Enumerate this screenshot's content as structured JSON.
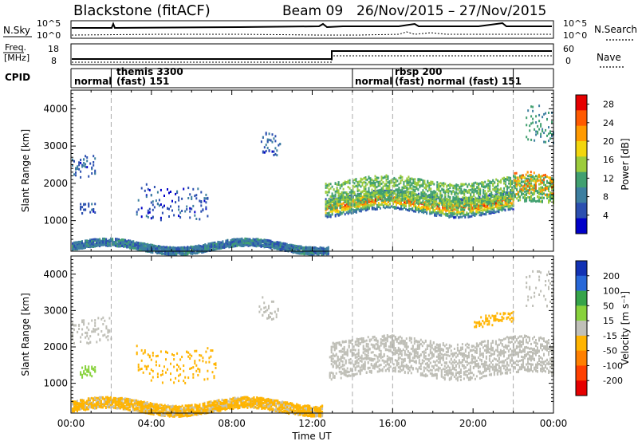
{
  "header": {
    "station": "Blackstone (fitACF)",
    "beam": "Beam 09",
    "date_range": "26/Nov/2015 – 27/Nov/2015"
  },
  "strip": {
    "nsky_label": "N.Sky",
    "nsearch_label": "N.Search",
    "freq_label_1": "Freq.",
    "freq_label_2": "[MHz]",
    "nave_label": "Nave",
    "cpid_label": "CPID",
    "nsky_ticks": [
      "10^5",
      "10^0"
    ],
    "nsearch_ticks": [
      "10^5",
      "10^0"
    ],
    "freq_ticks": [
      "18",
      "8"
    ],
    "nave_ticks": [
      "60",
      "0"
    ]
  },
  "modes": [
    {
      "name": "normal",
      "t": 0
    },
    {
      "name": "themis 3300",
      "t": 2
    },
    {
      "name": "(fast) 151",
      "t": 2
    },
    {
      "name": "normal",
      "t": 14
    },
    {
      "name": "rbsp 200",
      "t": 16
    },
    {
      "name": "(fast)",
      "t": 16
    },
    {
      "name": "normal (fast) 151",
      "t": 17.5
    }
  ],
  "mode_boundaries_hours": [
    2,
    14,
    16,
    22
  ],
  "colors": {
    "power_scale": [
      "#0000c8",
      "#2b4fb0",
      "#3d7fa0",
      "#41a070",
      "#9ccc3c",
      "#f2d60e",
      "#ff9a00",
      "#ff5a00",
      "#e60000"
    ],
    "velocity_scale": [
      "#1232b4",
      "#2868d8",
      "#36a44a",
      "#88d23c",
      "#c0c0b8",
      "#ffb400",
      "#ff8000",
      "#ff4000",
      "#e60000"
    ],
    "ground_scatter": "#bebeb6"
  },
  "chart_data": [
    {
      "type": "heatmap",
      "title": "",
      "xlabel": "Time UT",
      "ylabel": "Slant Range [km]",
      "x_ticks": [
        "00:00",
        "04:00",
        "08:00",
        "12:00",
        "16:00",
        "20:00",
        "00:00"
      ],
      "xlim_hours": [
        0,
        24
      ],
      "y_ticks": [
        1000,
        2000,
        3000,
        4000
      ],
      "ylim": [
        180,
        4500
      ],
      "colorbar": {
        "label": "Power [dB]",
        "ticks": [
          4,
          8,
          12,
          16,
          20,
          24,
          28
        ],
        "range": [
          0,
          30
        ]
      },
      "features": [
        {
          "t": [
            0,
            1.2
          ],
          "range": [
            2100,
            2700
          ],
          "level": 6
        },
        {
          "t": [
            0.4,
            1.2
          ],
          "range": [
            1100,
            1400
          ],
          "level": 5
        },
        {
          "t": [
            3.2,
            6.8
          ],
          "range": [
            1100,
            2000
          ],
          "level": 5
        },
        {
          "t": [
            9.4,
            10.4
          ],
          "range": [
            2700,
            3300
          ],
          "level": 6
        },
        {
          "t": [
            12.6,
            22
          ],
          "range": [
            1200,
            1700
          ],
          "level": 27
        },
        {
          "t": [
            12.6,
            24
          ],
          "range": [
            1400,
            2100
          ],
          "level": 13
        },
        {
          "t": [
            22,
            24
          ],
          "range": [
            1600,
            2200
          ],
          "level": 22
        },
        {
          "t": [
            0,
            12.8
          ],
          "range": [
            200,
            400
          ],
          "level": 8
        },
        {
          "t": [
            22.5,
            24
          ],
          "range": [
            3000,
            4000
          ],
          "level": 10
        }
      ]
    },
    {
      "type": "heatmap",
      "title": "",
      "xlabel": "Time UT",
      "ylabel": "Slant Range [km]",
      "x_ticks": [
        "00:00",
        "04:00",
        "08:00",
        "12:00",
        "16:00",
        "20:00",
        "00:00"
      ],
      "xlim_hours": [
        0,
        24
      ],
      "y_ticks": [
        1000,
        2000,
        3000,
        4000
      ],
      "ylim": [
        180,
        4500
      ],
      "colorbar": {
        "label": "Velocity [m s⁻¹]",
        "ticks": [
          200,
          100,
          50,
          15,
          -15,
          -50,
          -100,
          -200
        ],
        "range": [
          -250,
          250
        ]
      },
      "features": [
        {
          "t": [
            0,
            2
          ],
          "range": [
            2000,
            2700
          ],
          "value": 0
        },
        {
          "t": [
            0.4,
            1.2
          ],
          "range": [
            1100,
            1400
          ],
          "value": 60
        },
        {
          "t": [
            3.2,
            7.2
          ],
          "range": [
            1100,
            2000
          ],
          "value": -60
        },
        {
          "t": [
            9.3,
            10.3
          ],
          "range": [
            2700,
            3300
          ],
          "value": 0
        },
        {
          "t": [
            12.8,
            24
          ],
          "range": [
            1200,
            2200
          ],
          "value": 0
        },
        {
          "t": [
            0,
            12.5
          ],
          "range": [
            200,
            500
          ],
          "value": -40
        },
        {
          "t": [
            20,
            22
          ],
          "range": [
            2600,
            2900
          ],
          "value": -60
        },
        {
          "t": [
            22.5,
            24
          ],
          "range": [
            3000,
            4000
          ],
          "value": 0
        }
      ]
    }
  ]
}
